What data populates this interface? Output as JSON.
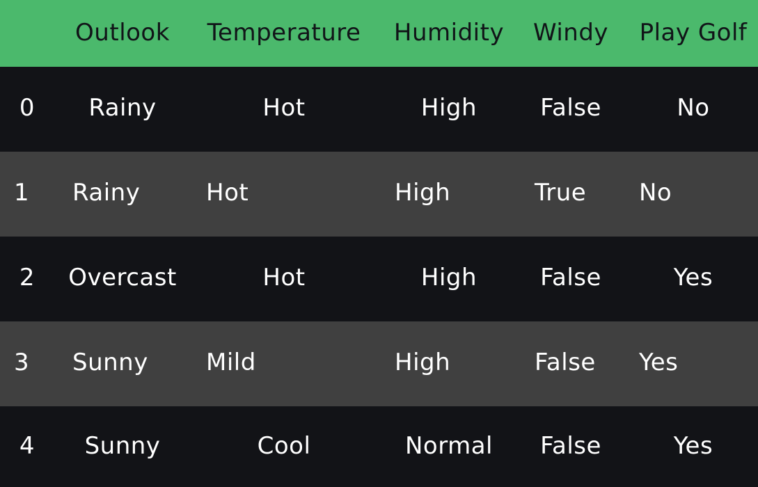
{
  "table": {
    "headers": [
      "",
      "Outlook",
      "Temperature",
      "Humidity",
      "Windy",
      "Play Golf"
    ],
    "rows": [
      {
        "index": "0",
        "outlook": "Rainy",
        "temperature": "Hot",
        "humidity": "High",
        "windy": "False",
        "play_golf": "No"
      },
      {
        "index": "1",
        "outlook": "Rainy",
        "temperature": "Hot",
        "humidity": "High",
        "windy": "True",
        "play_golf": "No"
      },
      {
        "index": "2",
        "outlook": "Overcast",
        "temperature": "Hot",
        "humidity": "High",
        "windy": "False",
        "play_golf": "Yes"
      },
      {
        "index": "3",
        "outlook": "Sunny",
        "temperature": "Mild",
        "humidity": "High",
        "windy": "False",
        "play_golf": "Yes"
      },
      {
        "index": "4",
        "outlook": "Sunny",
        "temperature": "Cool",
        "humidity": "Normal",
        "windy": "False",
        "play_golf": "Yes"
      }
    ]
  },
  "colors": {
    "header_bg": "#4bb96c",
    "header_text": "#111418",
    "row_dark_bg": "#121317",
    "row_gray_bg": "#404040",
    "row_text": "#ffffff"
  }
}
